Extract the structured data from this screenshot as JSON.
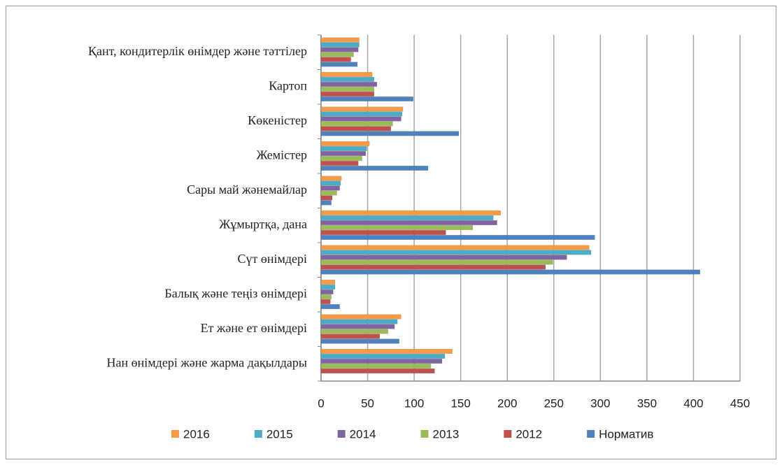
{
  "chart_data": {
    "type": "bar",
    "orientation": "horizontal",
    "categories": [
      "Нан өнімдері және жарма дақылдары",
      "Ет және ет өнімдері",
      "Балық және теңіз өнімдері",
      "Сүт өнімдері",
      "Жұмыртқа, дана",
      "Сары май жәнемайлар",
      "Жемістер",
      "Көкеністер",
      "Картоп",
      "Қант, кондитерлік өнімдер және тәттілер"
    ],
    "series": [
      {
        "name": "2016",
        "color": "#f59a45",
        "values": [
          141,
          86,
          15,
          288,
          193,
          22,
          52,
          88,
          55,
          41
        ]
      },
      {
        "name": "2015",
        "color": "#4bacc6",
        "values": [
          133,
          82,
          15,
          290,
          185,
          21,
          49,
          87,
          57,
          41
        ]
      },
      {
        "name": "2014",
        "color": "#8064a2",
        "values": [
          130,
          79,
          13,
          264,
          189,
          20,
          48,
          86,
          60,
          40
        ]
      },
      {
        "name": "2013",
        "color": "#9bbb59",
        "values": [
          118,
          72,
          11,
          249,
          163,
          17,
          44,
          77,
          57,
          35
        ]
      },
      {
        "name": "2012",
        "color": "#c0504d",
        "values": [
          122,
          63,
          10,
          241,
          134,
          12,
          40,
          75,
          57,
          32
        ]
      },
      {
        "name": "Норматив",
        "color": "#4f81bd",
        "values": [
          0,
          84,
          20,
          407,
          294,
          11,
          115,
          148,
          99,
          39
        ]
      }
    ],
    "xlim": [
      0,
      450
    ],
    "xticks": [
      0,
      50,
      100,
      150,
      200,
      250,
      300,
      350,
      400,
      450
    ],
    "grid": true,
    "legend": "bottom"
  }
}
